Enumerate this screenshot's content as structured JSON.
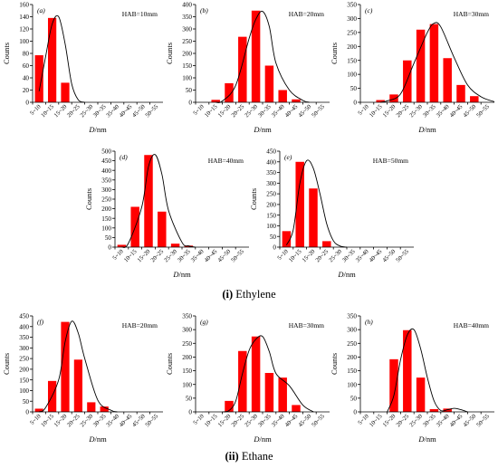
{
  "figure": {
    "sections": [
      {
        "roman": "(i)",
        "label": "Ethylene"
      },
      {
        "roman": "(ii)",
        "label": "Ethane"
      }
    ]
  },
  "chart_data": [
    {
      "type": "bar",
      "panel": "(a)",
      "annotation": "HAB=10mm",
      "xlabel": "D/nm",
      "ylabel": "Counts",
      "categories": [
        "5~10",
        "10~15",
        "15~20",
        "20~25",
        "25~30",
        "30~35",
        "35~40",
        "40~45",
        "45~50",
        "50~55"
      ],
      "values": [
        77,
        138,
        32,
        0,
        0,
        0,
        0,
        0,
        0,
        0
      ],
      "fit_curve": [
        [
          0.5,
          18
        ],
        [
          1.0,
          75
        ],
        [
          1.5,
          128
        ],
        [
          2.0,
          140
        ],
        [
          2.5,
          95
        ],
        [
          3.0,
          30
        ],
        [
          3.5,
          4
        ],
        [
          4.0,
          0
        ]
      ],
      "ylim": [
        0,
        160
      ],
      "yticks": [
        0,
        20,
        40,
        60,
        80,
        100,
        120,
        140,
        160
      ],
      "bar_color": "#ff0000"
    },
    {
      "type": "bar",
      "panel": "(b)",
      "annotation": "HAB=20mm",
      "xlabel": "D/nm",
      "ylabel": "Counts",
      "categories": [
        "5~10",
        "10~15",
        "15~20",
        "20~25",
        "25~30",
        "30~35",
        "35~40",
        "40~45",
        "45~50",
        "50~55"
      ],
      "values": [
        0,
        10,
        78,
        268,
        375,
        150,
        50,
        12,
        0,
        0
      ],
      "fit_curve": [
        [
          1.5,
          0
        ],
        [
          2.0,
          5
        ],
        [
          3.0,
          70
        ],
        [
          4.0,
          262
        ],
        [
          4.5,
          340
        ],
        [
          5.0,
          372
        ],
        [
          5.5,
          310
        ],
        [
          6.0,
          160
        ],
        [
          7.0,
          50
        ],
        [
          8.0,
          8
        ],
        [
          8.5,
          0
        ]
      ],
      "ylim": [
        0,
        400
      ],
      "yticks": [
        0,
        50,
        100,
        150,
        200,
        250,
        300,
        350,
        400
      ],
      "bar_color": "#ff0000"
    },
    {
      "type": "bar",
      "panel": "(c)",
      "annotation": "HAB=30mm",
      "xlabel": "D/nm",
      "ylabel": "Counts",
      "categories": [
        "5~10",
        "10~15",
        "15~20",
        "20~25",
        "25~30",
        "30~35",
        "35~40",
        "40~45",
        "45~50",
        "50~55"
      ],
      "values": [
        0,
        8,
        28,
        150,
        260,
        280,
        158,
        62,
        22,
        0
      ],
      "fit_curve": [
        [
          1.5,
          0
        ],
        [
          2.0,
          5
        ],
        [
          3.0,
          30
        ],
        [
          4.0,
          140
        ],
        [
          5.0,
          250
        ],
        [
          5.5,
          283
        ],
        [
          6.0,
          270
        ],
        [
          7.0,
          160
        ],
        [
          8.0,
          62
        ],
        [
          9.0,
          20
        ],
        [
          10.0,
          2
        ]
      ],
      "ylim": [
        0,
        350
      ],
      "yticks": [
        0,
        50,
        100,
        150,
        200,
        250,
        300,
        350
      ],
      "bar_color": "#ff0000"
    },
    {
      "type": "bar",
      "panel": "(d)",
      "annotation": "HAB=40mm",
      "xlabel": "D/nm",
      "ylabel": "Counts",
      "categories": [
        "5~10",
        "10~15",
        "15~20",
        "20~25",
        "25~30",
        "30~35",
        "35~40",
        "40~45",
        "45~50",
        "50~55"
      ],
      "values": [
        12,
        210,
        480,
        185,
        18,
        8,
        0,
        0,
        0,
        0
      ],
      "fit_curve": [
        [
          0.5,
          0
        ],
        [
          1.0,
          20
        ],
        [
          2.0,
          210
        ],
        [
          2.5,
          420
        ],
        [
          3.0,
          482
        ],
        [
          3.5,
          380
        ],
        [
          4.0,
          190
        ],
        [
          5.0,
          25
        ],
        [
          5.5,
          6
        ],
        [
          6.0,
          0
        ]
      ],
      "ylim": [
        0,
        500
      ],
      "yticks": [
        0,
        50,
        100,
        150,
        200,
        250,
        300,
        350,
        400,
        450,
        500
      ],
      "bar_color": "#ff0000"
    },
    {
      "type": "bar",
      "panel": "(e)",
      "annotation": "HAB=50mm",
      "xlabel": "D/nm",
      "ylabel": "Counts",
      "categories": [
        "5~10",
        "10~15",
        "15~20",
        "20~25",
        "25~30",
        "30~35",
        "35~40",
        "40~45",
        "45~50",
        "50~55"
      ],
      "values": [
        75,
        400,
        275,
        28,
        0,
        0,
        0,
        0,
        0,
        0
      ],
      "fit_curve": [
        [
          0.5,
          10
        ],
        [
          1.0,
          80
        ],
        [
          1.5,
          300
        ],
        [
          2.0,
          405
        ],
        [
          2.5,
          370
        ],
        [
          3.0,
          250
        ],
        [
          3.5,
          110
        ],
        [
          4.0,
          30
        ],
        [
          4.5,
          5
        ],
        [
          5.0,
          0
        ]
      ],
      "ylim": [
        0,
        450
      ],
      "yticks": [
        0,
        50,
        100,
        150,
        200,
        250,
        300,
        350,
        400,
        450
      ],
      "bar_color": "#ff0000"
    },
    {
      "type": "bar",
      "panel": "(f)",
      "annotation": "HAB=20mm",
      "xlabel": "D/nm",
      "ylabel": "Counts",
      "categories": [
        "5~10",
        "10~15",
        "15~20",
        "20~25",
        "25~30",
        "30~35",
        "35~40",
        "40~45",
        "45~50",
        "50~55"
      ],
      "values": [
        15,
        145,
        422,
        245,
        45,
        25,
        0,
        0,
        0,
        0
      ],
      "fit_curve": [
        [
          0.5,
          0
        ],
        [
          1.0,
          20
        ],
        [
          2.0,
          150
        ],
        [
          2.5,
          330
        ],
        [
          3.0,
          425
        ],
        [
          3.5,
          370
        ],
        [
          4.0,
          250
        ],
        [
          5.0,
          55
        ],
        [
          6.0,
          8
        ],
        [
          6.5,
          0
        ]
      ],
      "ylim": [
        0,
        450
      ],
      "yticks": [
        0,
        50,
        100,
        150,
        200,
        250,
        300,
        350,
        400,
        450
      ],
      "bar_color": "#ff0000"
    },
    {
      "type": "bar",
      "panel": "(g)",
      "annotation": "HAB=30mm",
      "xlabel": "D/nm",
      "ylabel": "Counts",
      "categories": [
        "5~10",
        "10~15",
        "15~20",
        "20~25",
        "25~30",
        "30~35",
        "35~40",
        "40~45",
        "45~50",
        "50~55"
      ],
      "values": [
        0,
        0,
        40,
        222,
        275,
        142,
        125,
        25,
        0,
        0
      ],
      "fit_curve": [
        [
          2.0,
          0
        ],
        [
          2.5,
          5
        ],
        [
          3.0,
          40
        ],
        [
          3.5,
          140
        ],
        [
          4.0,
          225
        ],
        [
          4.5,
          265
        ],
        [
          5.0,
          275
        ],
        [
          5.5,
          220
        ],
        [
          6.0,
          140
        ],
        [
          7.0,
          95
        ],
        [
          8.0,
          25
        ],
        [
          8.8,
          0
        ]
      ],
      "ylim": [
        0,
        350
      ],
      "yticks": [
        0,
        50,
        100,
        150,
        200,
        250,
        300,
        350
      ],
      "bar_color": "#ff0000"
    },
    {
      "type": "bar",
      "panel": "(h)",
      "annotation": "HAB=40mm",
      "xlabel": "D/nm",
      "ylabel": "Counts",
      "categories": [
        "5~10",
        "10~15",
        "15~20",
        "20~25",
        "25~30",
        "30~35",
        "35~40",
        "40~45",
        "45~50",
        "50~55"
      ],
      "values": [
        0,
        0,
        192,
        298,
        125,
        10,
        12,
        0,
        0,
        0
      ],
      "fit_curve": [
        [
          2.0,
          0
        ],
        [
          2.5,
          60
        ],
        [
          3.0,
          190
        ],
        [
          3.5,
          280
        ],
        [
          4.0,
          300
        ],
        [
          4.5,
          230
        ],
        [
          5.0,
          125
        ],
        [
          5.5,
          40
        ],
        [
          6.0,
          5
        ],
        [
          6.5,
          8
        ],
        [
          7.0,
          13
        ],
        [
          7.5,
          8
        ],
        [
          8.0,
          0
        ]
      ],
      "ylim": [
        0,
        350
      ],
      "yticks": [
        0,
        50,
        100,
        150,
        200,
        250,
        300,
        350
      ],
      "bar_color": "#ff0000"
    }
  ]
}
